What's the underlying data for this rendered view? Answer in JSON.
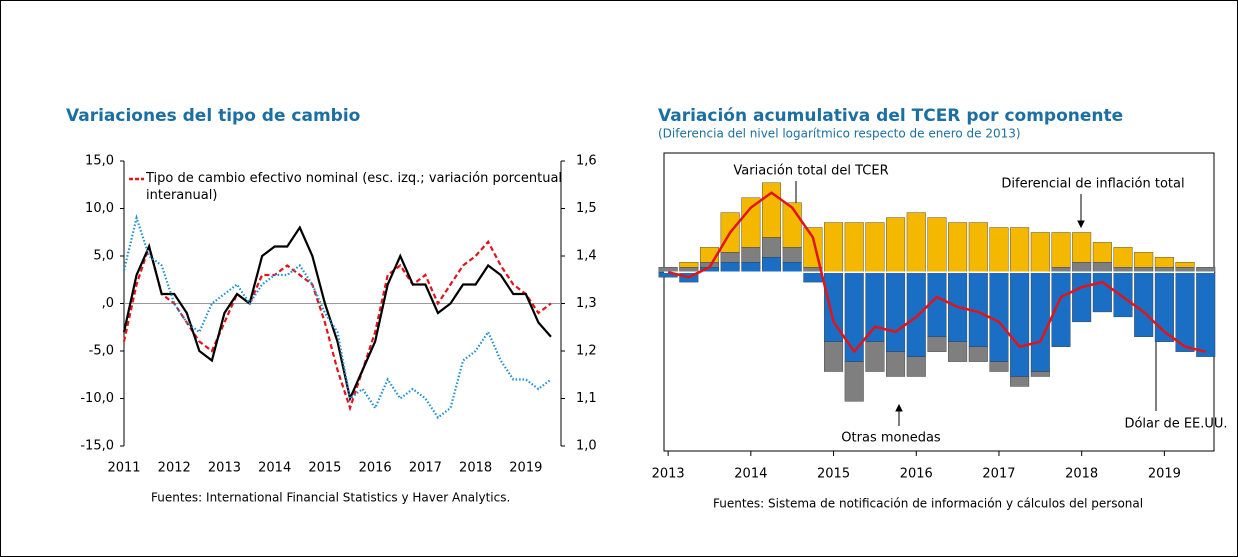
{
  "chart_data": [
    {
      "type": "line",
      "title": "Variaciones del tipo de cambio",
      "source": "Fuentes: International Financial Statistics y Haver Analytics.",
      "x": [
        2011,
        2011.25,
        2011.5,
        2011.75,
        2012,
        2012.25,
        2012.5,
        2012.75,
        2013,
        2013.25,
        2013.5,
        2013.75,
        2014,
        2014.25,
        2014.5,
        2014.75,
        2015,
        2015.25,
        2015.5,
        2015.75,
        2016,
        2016.25,
        2016.5,
        2016.75,
        2017,
        2017.25,
        2017.5,
        2017.75,
        2018,
        2018.25,
        2018.5,
        2018.75,
        2019,
        2019.25,
        2019.5
      ],
      "xlim": [
        2011,
        2019.7
      ],
      "xticks": [
        2011,
        2012,
        2013,
        2014,
        2015,
        2016,
        2017,
        2018,
        2019
      ],
      "ylim": [
        -15,
        15
      ],
      "yticks": [
        {
          "value": 15,
          "label": "15,0"
        },
        {
          "value": 10,
          "label": "10,0"
        },
        {
          "value": 5,
          "label": "5,0"
        },
        {
          "value": 0,
          "label": ",0"
        },
        {
          "value": -5,
          "label": "-5,0"
        },
        {
          "value": -10,
          "label": "-10,0"
        },
        {
          "value": -15,
          "label": "-15,0"
        }
      ],
      "y2lim": [
        1.0,
        1.6
      ],
      "y2ticks": [
        {
          "value": 1.6,
          "label": "1,6"
        },
        {
          "value": 1.5,
          "label": "1,5"
        },
        {
          "value": 1.4,
          "label": "1,4"
        },
        {
          "value": 1.3,
          "label": "1,3"
        },
        {
          "value": 1.2,
          "label": "1,2"
        },
        {
          "value": 1.1,
          "label": "1,1"
        },
        {
          "value": 1.0,
          "label": "1,0"
        }
      ],
      "series": [
        {
          "name": "Tipo de cambio efectivo nominal (esc. izq.; variación porcentual interanual)",
          "color": "#e0141b",
          "style": "dashed",
          "values": [
            -4,
            2,
            6,
            1,
            0,
            -2,
            -4,
            -5,
            -2,
            1,
            0,
            3,
            3,
            4,
            3,
            2,
            -2,
            -7,
            -11,
            -7,
            -3,
            3,
            4,
            2,
            3,
            0,
            2,
            4,
            5,
            6.5,
            4,
            2,
            1,
            -1,
            0
          ]
        },
        {
          "color": "#000000",
          "style": "solid",
          "values": [
            -3,
            3,
            6,
            1,
            1,
            -1,
            -5,
            -6,
            -1,
            1,
            0,
            5,
            6,
            6,
            8,
            5,
            0,
            -4,
            -10,
            -7,
            -4,
            2,
            5,
            2,
            2,
            -1,
            0,
            2,
            2,
            4,
            3,
            1,
            1,
            -2,
            -3.5
          ]
        },
        {
          "color": "#1f8fd0",
          "style": "dotted",
          "values": [
            3.5,
            9,
            5,
            4,
            0,
            -2,
            -3,
            0,
            1,
            2,
            0,
            2,
            3,
            3,
            4,
            2,
            -1,
            -3,
            -10,
            -9,
            -11,
            -8,
            -10,
            -9,
            -10,
            -12,
            -11,
            -6,
            -5,
            -3,
            -6,
            -8,
            -8,
            -9,
            -8
          ]
        }
      ]
    },
    {
      "type": "stacked_bar",
      "title": "Variación acumulativa del TCER por componente",
      "subtitle": "(Diferencia del nivel logarítmico respecto de enero de 2013)",
      "source": "Fuentes: Sistema de notificación de información y cálculos del personal",
      "x": [
        2013,
        2013.25,
        2013.5,
        2013.75,
        2014,
        2014.25,
        2014.5,
        2014.75,
        2015,
        2015.25,
        2015.5,
        2015.75,
        2016,
        2016.25,
        2016.5,
        2016.75,
        2017,
        2017.25,
        2017.5,
        2017.75,
        2018,
        2018.25,
        2018.5,
        2018.75,
        2019,
        2019.25,
        2019.5
      ],
      "xlim": [
        2012.95,
        2019.6
      ],
      "xticks": [
        2013,
        2014,
        2015,
        2016,
        2017,
        2018,
        2019
      ],
      "ylim": [
        -36,
        24
      ],
      "series": [
        {
          "name": "Dólar de EE.UU.",
          "color": "#1a6fc4",
          "values": [
            -1,
            -2,
            1,
            2,
            2,
            3,
            2,
            -2,
            -14,
            -18,
            -14,
            -16,
            -17,
            -13,
            -14,
            -15,
            -18,
            -21,
            -20,
            -15,
            -10,
            -8,
            -9,
            -13,
            -14,
            -16,
            -17
          ]
        },
        {
          "name": "Otras monedas",
          "color": "#7f7f7f",
          "values": [
            1,
            1,
            1,
            2,
            3,
            4,
            3,
            1,
            -6,
            -8,
            -6,
            -5,
            -4,
            -3,
            -4,
            -3,
            -2,
            -2,
            -1,
            1,
            2,
            2,
            1,
            1,
            1,
            1,
            1
          ]
        },
        {
          "name": "Diferencial de inflación total",
          "color": "#f5b800",
          "values": [
            0,
            1,
            3,
            8,
            10,
            11,
            9,
            8,
            10,
            10,
            10,
            11,
            12,
            11,
            10,
            10,
            9,
            9,
            8,
            7,
            6,
            4,
            4,
            3,
            2,
            1,
            0
          ]
        },
        {
          "name": "Variación total del TCER",
          "color": "#e0141b",
          "type": "line",
          "values": [
            0,
            -1,
            1,
            8,
            13,
            16,
            13,
            7,
            -10,
            -16,
            -11,
            -12,
            -9,
            -5,
            -7,
            -8,
            -10,
            -15,
            -14,
            -5,
            -3,
            -2,
            -5,
            -8,
            -12,
            -15,
            -16
          ]
        }
      ]
    }
  ]
}
